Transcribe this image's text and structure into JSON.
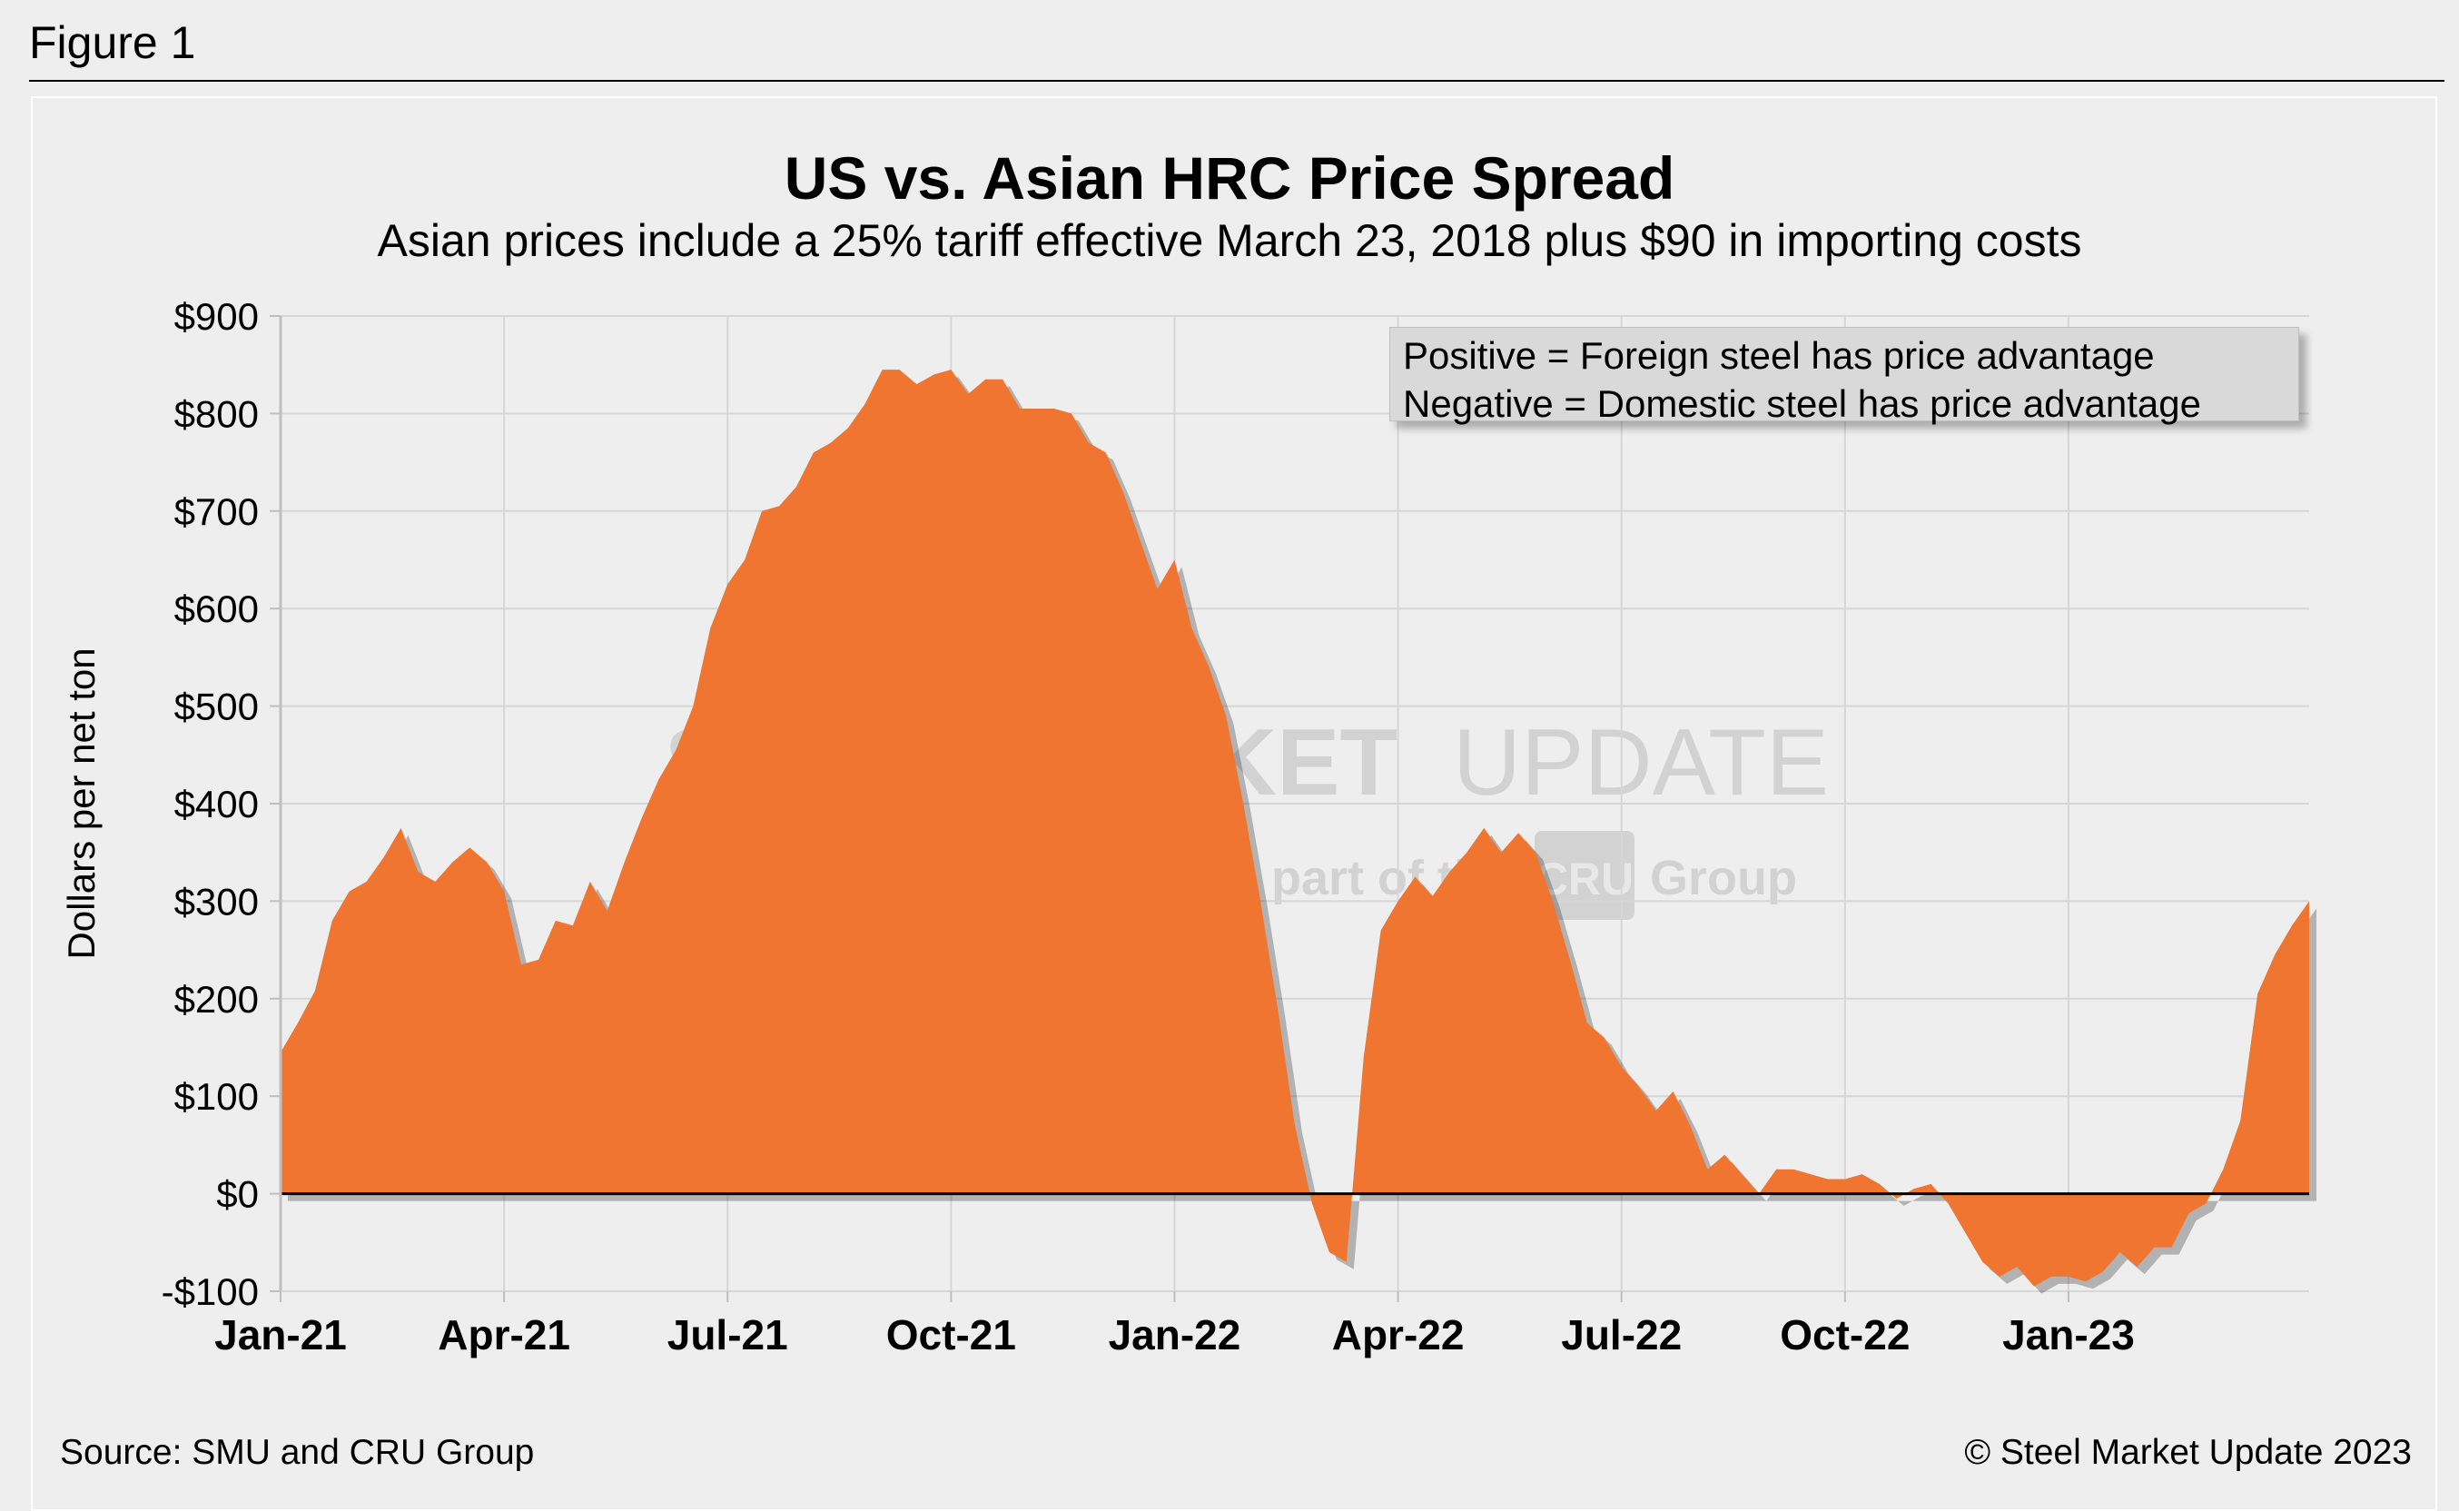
{
  "figure_label": "Figure 1",
  "source": "Source: SMU and CRU Group",
  "copyright": "© Steel Market Update 2023",
  "watermark": {
    "line1_bold": "STEEL MARKET",
    "line1_light": "UPDATE",
    "line2": "part of the",
    "badge": "CRU",
    "line2_end": "Group"
  },
  "colors": {
    "fill": "#f07530",
    "grid": "#d6d6d6",
    "axis": "#000000",
    "background": "#eeeeee"
  },
  "chart_data": {
    "type": "area",
    "title": "US vs. Asian HRC Price Spread",
    "subtitle": "Asian prices include a 25% tariff effective March 23, 2018 plus $90 in importing costs",
    "ylabel": "Dollars per net ton",
    "xlabel": "",
    "ylim": [
      -100,
      900
    ],
    "yticks": [
      -100,
      0,
      100,
      200,
      300,
      400,
      500,
      600,
      700,
      800,
      900
    ],
    "ytick_labels": [
      "-$100",
      "$0",
      "$100",
      "$200",
      "$300",
      "$400",
      "$500",
      "$600",
      "$700",
      "$800",
      "$900"
    ],
    "x_ticks": [
      "Jan-21",
      "Apr-21",
      "Jul-21",
      "Oct-21",
      "Jan-22",
      "Apr-22",
      "Jul-22",
      "Oct-22",
      "Jan-23"
    ],
    "x_tick_week_index": [
      0,
      13,
      26,
      39,
      52,
      65,
      78,
      91,
      104
    ],
    "x_range_weeks": [
      0,
      118
    ],
    "legend": [
      "Positive = Foreign steel has price advantage",
      "Negative = Domestic steel has price advantage"
    ],
    "grid": true,
    "series": [
      {
        "name": "US vs. Asian HRC price spread ($/net ton), weekly",
        "values": [
          145,
          175,
          208,
          280,
          310,
          320,
          345,
          375,
          330,
          320,
          340,
          355,
          340,
          310,
          235,
          240,
          280,
          275,
          320,
          290,
          340,
          385,
          425,
          455,
          500,
          580,
          625,
          650,
          700,
          705,
          725,
          760,
          770,
          785,
          810,
          845,
          845,
          830,
          840,
          845,
          820,
          835,
          835,
          805,
          805,
          805,
          800,
          770,
          760,
          720,
          670,
          620,
          650,
          580,
          540,
          490,
          400,
          300,
          190,
          70,
          -10,
          -60,
          -70,
          140,
          270,
          300,
          325,
          305,
          330,
          350,
          375,
          350,
          370,
          350,
          300,
          240,
          175,
          160,
          130,
          110,
          85,
          105,
          70,
          25,
          40,
          20,
          0,
          25,
          25,
          20,
          15,
          15,
          20,
          10,
          -5,
          5,
          10,
          -10,
          -40,
          -70,
          -85,
          -75,
          -95,
          -85,
          -85,
          -90,
          -80,
          -60,
          -75,
          -55,
          -55,
          -20,
          -10,
          25,
          75,
          205,
          245,
          275,
          300
        ]
      }
    ]
  }
}
